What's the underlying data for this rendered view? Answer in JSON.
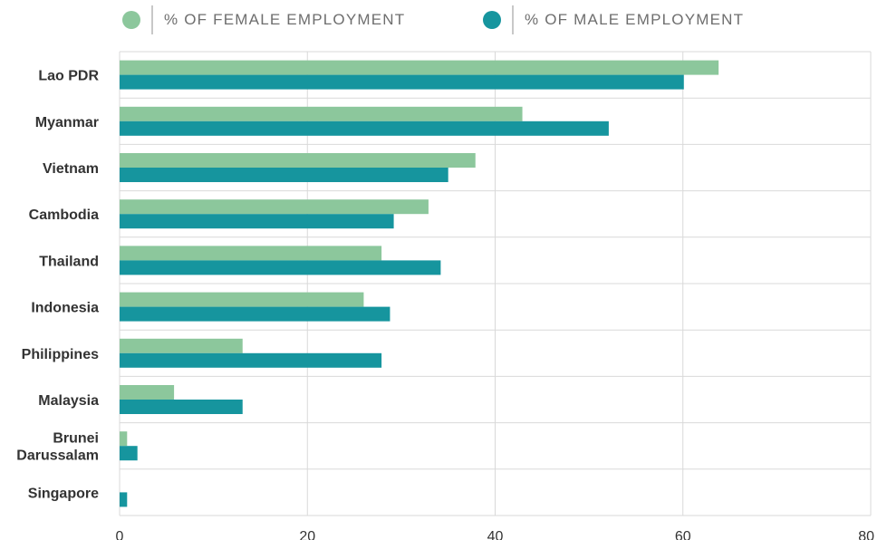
{
  "legend": {
    "female_label": "% OF FEMALE EMPLOYMENT",
    "male_label": "% OF MALE EMPLOYMENT"
  },
  "colors": {
    "female": "#8cc79c",
    "male": "#16959e",
    "grid": "#d9d9d9"
  },
  "chart_data": {
    "type": "bar",
    "orientation": "horizontal",
    "categories": [
      [
        "Lao PDR"
      ],
      [
        "Myanmar"
      ],
      [
        "Vietnam"
      ],
      [
        "Cambodia"
      ],
      [
        "Thailand"
      ],
      [
        "Indonesia"
      ],
      [
        "Philippines"
      ],
      [
        "Malaysia"
      ],
      [
        "Brunei",
        "Darussalam"
      ],
      [
        "Singapore"
      ]
    ],
    "series": [
      {
        "name": "% OF FEMALE EMPLOYMENT",
        "values": [
          63.8,
          42.9,
          37.9,
          32.9,
          27.9,
          26.0,
          13.1,
          5.8,
          0.8,
          0.0
        ]
      },
      {
        "name": "% OF MALE EMPLOYMENT",
        "values": [
          60.1,
          52.1,
          35.0,
          29.2,
          34.2,
          28.8,
          27.9,
          13.1,
          1.9,
          0.8
        ]
      }
    ],
    "xlim": [
      0,
      80
    ],
    "xticks": [
      0,
      20,
      40,
      60,
      80
    ],
    "grid": true,
    "legend_position": "top"
  }
}
